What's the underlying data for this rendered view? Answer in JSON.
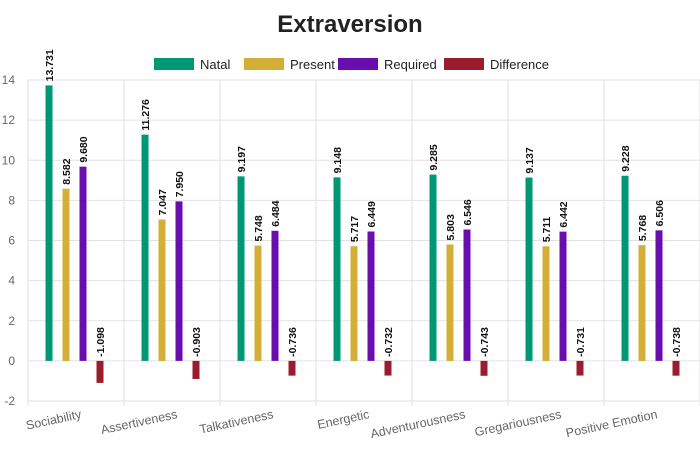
{
  "chart_data": {
    "type": "bar",
    "title": "Extraversion",
    "categories": [
      "Sociability",
      "Assertiveness",
      "Talkativeness",
      "Energetic",
      "Adventurousness",
      "Gregariousness",
      "Positive Emotion"
    ],
    "series": [
      {
        "name": "Natal",
        "color": "#009874",
        "values": [
          13.731,
          11.276,
          9.197,
          9.148,
          9.285,
          9.137,
          9.228
        ]
      },
      {
        "name": "Present",
        "color": "#d4af37",
        "values": [
          8.582,
          7.047,
          5.748,
          5.717,
          5.803,
          5.711,
          5.768
        ]
      },
      {
        "name": "Required",
        "color": "#6a0dad",
        "values": [
          9.68,
          7.95,
          6.484,
          6.449,
          6.546,
          6.442,
          6.506
        ]
      },
      {
        "name": "Difference",
        "color": "#9b1c2c",
        "values": [
          -1.098,
          -0.903,
          -0.736,
          -0.732,
          -0.743,
          -0.731,
          -0.738
        ]
      }
    ],
    "data_labels": [
      [
        "13.731",
        "11.276",
        "9.197",
        "9.148",
        "9.285",
        "9.137",
        "9.228"
      ],
      [
        "8.582",
        "7.047",
        "5.748",
        "5.717",
        "5.803",
        "5.711",
        "5.768"
      ],
      [
        "9.680",
        "7.950",
        "6.484",
        "6.449",
        "6.546",
        "6.442",
        "6.506"
      ],
      [
        "-1.098",
        "-0.903",
        "-0.736",
        "-0.732",
        "-0.743",
        "-0.731",
        "-0.738"
      ]
    ],
    "y_ticks": [
      -2,
      0,
      2,
      4,
      6,
      8,
      10,
      12,
      14
    ],
    "ylim": [
      -2,
      14
    ],
    "grid": true,
    "legend_position": "top-center"
  }
}
